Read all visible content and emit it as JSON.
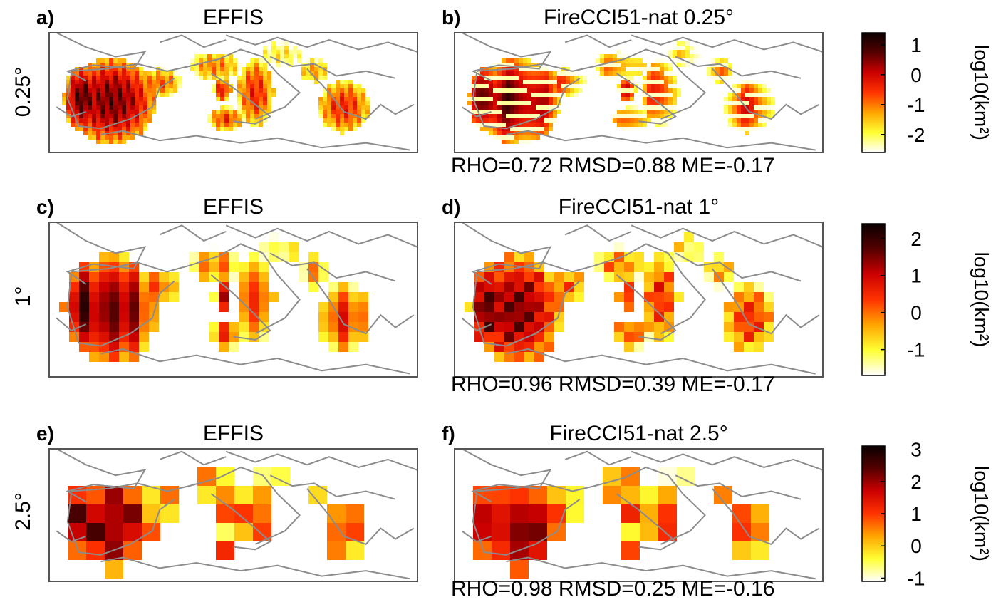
{
  "figure": {
    "row_labels": [
      "0.25°",
      "1°",
      "2.5°"
    ],
    "colorbar_label": "log10(km²)",
    "stats": [
      "RHO=0.72 RMSD=0.88 ME=-0.17",
      "RHO=0.96 RMSD=0.39 ME=-0.17",
      "RHO=0.98 RMSD=0.25 ME=-0.16"
    ],
    "colormap": [
      "#ffffff",
      "#ffff33",
      "#ffa500",
      "#ff3300",
      "#cc0000",
      "#550000",
      "#0a0000"
    ],
    "coastline_color": "#8c8c8c"
  },
  "chart_data": [
    {
      "type": "heatmap",
      "panel_letter": "a)",
      "title": "EFFIS",
      "resolution": "0.25°",
      "row": 0,
      "col": 0,
      "colorbar": {
        "range": [
          -2.6,
          1.4
        ],
        "ticks": [
          1,
          0,
          -1,
          -2
        ]
      }
    },
    {
      "type": "heatmap",
      "panel_letter": "b)",
      "title": "FireCCI51-nat 0.25°",
      "resolution": "0.25°",
      "row": 0,
      "col": 1,
      "stats": {
        "RHO": 0.72,
        "RMSD": 0.88,
        "ME": -0.17
      },
      "colorbar": {
        "range": [
          -2.6,
          1.4
        ],
        "ticks": [
          1,
          0,
          -1,
          -2
        ]
      }
    },
    {
      "type": "heatmap",
      "panel_letter": "c)",
      "title": "EFFIS",
      "resolution": "1°",
      "row": 1,
      "col": 0,
      "colorbar": {
        "range": [
          -1.7,
          2.4
        ],
        "ticks": [
          2,
          1,
          0,
          -1
        ]
      }
    },
    {
      "type": "heatmap",
      "panel_letter": "d)",
      "title": "FireCCI51-nat 1°",
      "resolution": "1°",
      "row": 1,
      "col": 1,
      "stats": {
        "RHO": 0.96,
        "RMSD": 0.39,
        "ME": -0.17
      },
      "colorbar": {
        "range": [
          -1.7,
          2.4
        ],
        "ticks": [
          2,
          1,
          0,
          -1
        ]
      }
    },
    {
      "type": "heatmap",
      "panel_letter": "e)",
      "title": "EFFIS",
      "resolution": "2.5°",
      "row": 2,
      "col": 0,
      "colorbar": {
        "range": [
          -1.1,
          3.1
        ],
        "ticks": [
          3,
          2,
          1,
          0,
          -1
        ]
      }
    },
    {
      "type": "heatmap",
      "panel_letter": "f)",
      "title": "FireCCI51-nat 2.5°",
      "resolution": "2.5°",
      "row": 2,
      "col": 1,
      "stats": {
        "RHO": 0.98,
        "RMSD": 0.25,
        "ME": -0.16
      },
      "colorbar": {
        "range": [
          -1.1,
          3.1
        ],
        "ticks": [
          3,
          2,
          1,
          0,
          -1
        ]
      }
    }
  ]
}
